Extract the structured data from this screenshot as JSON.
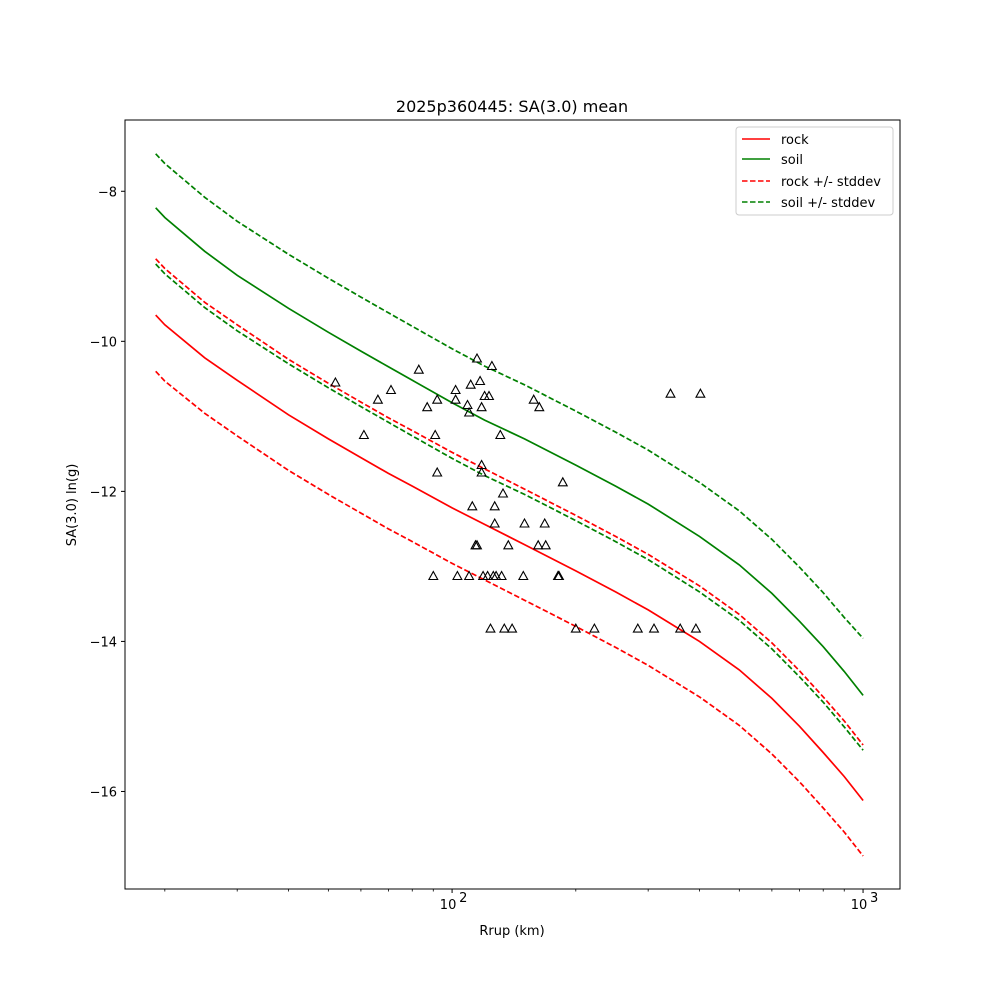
{
  "chart_data": {
    "type": "line",
    "title": "2025p360445: SA(3.0) mean",
    "xlabel": "Rrup (km)",
    "ylabel": "SA(3.0) ln(g)",
    "xscale": "log",
    "xlim": [
      16,
      1230
    ],
    "ylim": [
      -17.3,
      -7.05
    ],
    "xticks": [
      100,
      1000
    ],
    "xtick_labels": [
      "10",
      "10"
    ],
    "xtick_exponents": [
      "2",
      "3"
    ],
    "yticks": [
      -16,
      -14,
      -12,
      -10,
      -8
    ],
    "ytick_labels": [
      "−16",
      "−14",
      "−12",
      "−10",
      "−8"
    ],
    "grid": false,
    "legend_placement": "top-right",
    "series": [
      {
        "name": "rock",
        "style": "solid",
        "color": "#ff0000",
        "x": [
          19,
          20,
          25,
          30,
          40,
          50,
          60,
          70,
          80,
          100,
          120,
          150,
          200,
          250,
          300,
          400,
          500,
          600,
          700,
          800,
          900,
          1000
        ],
        "y": [
          -9.65,
          -9.78,
          -10.22,
          -10.52,
          -10.98,
          -11.3,
          -11.55,
          -11.76,
          -11.93,
          -12.22,
          -12.44,
          -12.71,
          -13.06,
          -13.34,
          -13.58,
          -14.0,
          -14.38,
          -14.76,
          -15.13,
          -15.48,
          -15.8,
          -16.12
        ]
      },
      {
        "name": "soil",
        "style": "solid",
        "color": "#008000",
        "x": [
          19,
          20,
          25,
          30,
          40,
          50,
          60,
          70,
          80,
          100,
          120,
          150,
          200,
          250,
          300,
          400,
          500,
          600,
          700,
          800,
          900,
          1000
        ],
        "y": [
          -8.22,
          -8.35,
          -8.8,
          -9.12,
          -9.56,
          -9.88,
          -10.13,
          -10.34,
          -10.52,
          -10.82,
          -11.05,
          -11.3,
          -11.65,
          -11.93,
          -12.17,
          -12.6,
          -12.98,
          -13.36,
          -13.73,
          -14.07,
          -14.4,
          -14.72
        ]
      },
      {
        "name": "rock +/- stddev",
        "style": "dashed",
        "color": "#ff0000",
        "x": [
          19,
          20,
          25,
          30,
          40,
          50,
          60,
          70,
          80,
          100,
          120,
          150,
          200,
          250,
          300,
          400,
          500,
          600,
          700,
          800,
          900,
          1000
        ],
        "y": [
          -8.9,
          -9.03,
          -9.48,
          -9.78,
          -10.24,
          -10.56,
          -10.81,
          -11.02,
          -11.19,
          -11.48,
          -11.7,
          -11.97,
          -12.32,
          -12.6,
          -12.84,
          -13.26,
          -13.64,
          -14.02,
          -14.39,
          -14.74,
          -15.06,
          -15.38
        ]
      },
      {
        "name": "rock +/- stddev lower",
        "style": "dashed",
        "color": "#ff0000",
        "x": [
          19,
          20,
          25,
          30,
          40,
          50,
          60,
          70,
          80,
          100,
          120,
          150,
          200,
          250,
          300,
          400,
          500,
          600,
          700,
          800,
          900,
          1000
        ],
        "y": [
          -10.4,
          -10.53,
          -10.96,
          -11.26,
          -11.72,
          -12.04,
          -12.29,
          -12.5,
          -12.67,
          -12.96,
          -13.18,
          -13.45,
          -13.8,
          -14.08,
          -14.32,
          -14.74,
          -15.12,
          -15.5,
          -15.87,
          -16.22,
          -16.54,
          -16.86
        ]
      },
      {
        "name": "soil +/- stddev",
        "style": "dashed",
        "color": "#008000",
        "x": [
          19,
          20,
          25,
          30,
          40,
          50,
          60,
          70,
          80,
          100,
          120,
          150,
          200,
          250,
          300,
          400,
          500,
          600,
          700,
          800,
          900,
          1000
        ],
        "y": [
          -7.5,
          -7.63,
          -8.08,
          -8.4,
          -8.84,
          -9.16,
          -9.41,
          -9.62,
          -9.8,
          -10.1,
          -10.33,
          -10.58,
          -10.93,
          -11.21,
          -11.45,
          -11.88,
          -12.26,
          -12.64,
          -13.01,
          -13.35,
          -13.68,
          -13.96
        ]
      },
      {
        "name": "soil +/- stddev lower",
        "style": "dashed",
        "color": "#008000",
        "x": [
          19,
          20,
          25,
          30,
          40,
          50,
          60,
          70,
          80,
          100,
          120,
          150,
          200,
          250,
          300,
          400,
          500,
          600,
          700,
          800,
          900,
          1000
        ],
        "y": [
          -8.97,
          -9.1,
          -9.55,
          -9.86,
          -10.3,
          -10.62,
          -10.87,
          -11.08,
          -11.26,
          -11.56,
          -11.79,
          -12.04,
          -12.39,
          -12.67,
          -12.91,
          -13.34,
          -13.72,
          -14.1,
          -14.47,
          -14.81,
          -15.14,
          -15.45
        ]
      }
    ],
    "observations": {
      "marker": "triangle",
      "color": "#000000",
      "points": [
        [
          52,
          -10.55
        ],
        [
          61,
          -11.25
        ],
        [
          66,
          -10.78
        ],
        [
          71,
          -10.65
        ],
        [
          83,
          -10.38
        ],
        [
          87,
          -10.88
        ],
        [
          90,
          -13.13
        ],
        [
          91,
          -11.25
        ],
        [
          92,
          -10.78
        ],
        [
          92,
          -11.75
        ],
        [
          102,
          -10.65
        ],
        [
          102,
          -10.78
        ],
        [
          103,
          -13.13
        ],
        [
          109,
          -10.85
        ],
        [
          110,
          -10.95
        ],
        [
          110,
          -13.13
        ],
        [
          111,
          -10.58
        ],
        [
          112,
          -12.2
        ],
        [
          114,
          -12.72
        ],
        [
          115,
          -12.72
        ],
        [
          115,
          -10.23
        ],
        [
          117,
          -10.53
        ],
        [
          118,
          -10.88
        ],
        [
          118,
          -11.65
        ],
        [
          118,
          -11.75
        ],
        [
          119,
          -13.13
        ],
        [
          120,
          -10.73
        ],
        [
          122,
          -13.13
        ],
        [
          123,
          -10.73
        ],
        [
          124,
          -13.83
        ],
        [
          125,
          -10.33
        ],
        [
          126,
          -13.13
        ],
        [
          127,
          -12.2
        ],
        [
          127,
          -12.43
        ],
        [
          128,
          -13.13
        ],
        [
          131,
          -11.25
        ],
        [
          132,
          -13.13
        ],
        [
          133,
          -12.03
        ],
        [
          134,
          -13.83
        ],
        [
          137,
          -12.72
        ],
        [
          140,
          -13.83
        ],
        [
          149,
          -13.13
        ],
        [
          150,
          -12.43
        ],
        [
          158,
          -10.78
        ],
        [
          162,
          -12.72
        ],
        [
          163,
          -10.88
        ],
        [
          168,
          -12.43
        ],
        [
          169,
          -12.72
        ],
        [
          181,
          -13.13
        ],
        [
          182,
          -13.13
        ],
        [
          186,
          -11.88
        ],
        [
          200,
          -13.83
        ],
        [
          222,
          -13.83
        ],
        [
          283,
          -13.83
        ],
        [
          310,
          -13.83
        ],
        [
          340,
          -10.7
        ],
        [
          359,
          -13.83
        ],
        [
          392,
          -13.83
        ],
        [
          402,
          -10.7
        ]
      ]
    }
  },
  "legend": {
    "items": [
      {
        "label": "rock",
        "color": "#ff0000",
        "style": "solid"
      },
      {
        "label": "soil",
        "color": "#008000",
        "style": "solid"
      },
      {
        "label": "rock +/- stddev",
        "color": "#ff0000",
        "style": "dashed"
      },
      {
        "label": "soil +/- stddev",
        "color": "#008000",
        "style": "dashed"
      }
    ]
  }
}
